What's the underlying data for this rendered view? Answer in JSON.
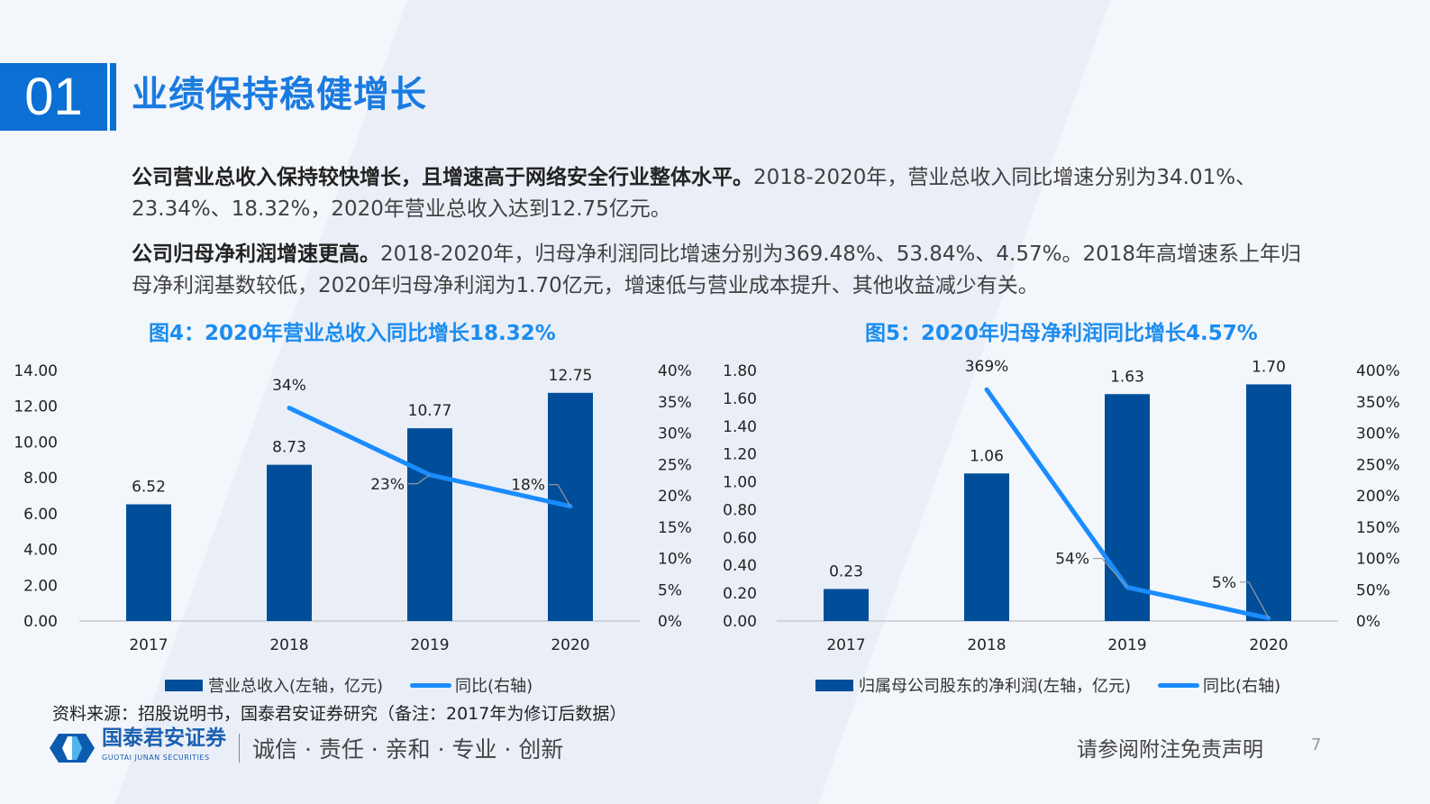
{
  "header": {
    "number": "01",
    "title": "业绩保持稳健增长"
  },
  "paragraphs": [
    {
      "bold": "公司营业总收入保持较快增长，且增速高于网络安全行业整体水平。",
      "text": "2018-2020年，营业总收入同比增速分别为34.01%、23.34%、18.32%，2020年营业总收入达到12.75亿元。"
    },
    {
      "bold": "公司归母净利润增速更高。",
      "text": "2018-2020年，归母净利润同比增速分别为369.48%、53.84%、4.57%。2018年高增速系上年归母净利润基数较低，2020年归母净利润为1.70亿元，增速低与营业成本提升、其他收益减少有关。"
    }
  ],
  "colors": {
    "bar": "#004e9a",
    "line": "#1a8cff",
    "title": "#1a7be0",
    "chart_title": "#1b8cf0"
  },
  "chart_data": [
    {
      "type": "bar+line",
      "title": "图4：2020年营业总收入同比增长18.32%",
      "categories": [
        "2017",
        "2018",
        "2019",
        "2020"
      ],
      "series": [
        {
          "name": "营业总收入(左轴，亿元)",
          "type": "bar",
          "axis": "left",
          "values": [
            6.52,
            8.73,
            10.77,
            12.75
          ],
          "labels": [
            "6.52",
            "8.73",
            "10.77",
            "12.75"
          ]
        },
        {
          "name": "同比(右轴)",
          "type": "line",
          "axis": "right",
          "values": [
            null,
            34.01,
            23.34,
            18.32
          ],
          "labels": [
            "",
            "34%",
            "23%",
            "18%"
          ]
        }
      ],
      "left_axis": {
        "range": [
          0,
          14
        ],
        "ticks": [
          "0.00",
          "2.00",
          "4.00",
          "6.00",
          "8.00",
          "10.00",
          "12.00",
          "14.00"
        ]
      },
      "right_axis": {
        "range": [
          0,
          40
        ],
        "ticks": [
          "0%",
          "5%",
          "10%",
          "15%",
          "20%",
          "25%",
          "30%",
          "35%",
          "40%"
        ]
      },
      "legend": "bottom",
      "grid": false
    },
    {
      "type": "bar+line",
      "title": "图5：2020年归母净利润同比增长4.57%",
      "categories": [
        "2017",
        "2018",
        "2019",
        "2020"
      ],
      "series": [
        {
          "name": "归属母公司股东的净利润(左轴，亿元)",
          "type": "bar",
          "axis": "left",
          "values": [
            0.23,
            1.06,
            1.63,
            1.7
          ],
          "labels": [
            "0.23",
            "1.06",
            "1.63",
            "1.70"
          ]
        },
        {
          "name": "同比(右轴)",
          "type": "line",
          "axis": "right",
          "values": [
            null,
            369.48,
            53.84,
            4.57
          ],
          "labels": [
            "",
            "369%",
            "54%",
            "5%"
          ]
        }
      ],
      "left_axis": {
        "range": [
          0,
          1.8
        ],
        "ticks": [
          "0.00",
          "0.20",
          "0.40",
          "0.60",
          "0.80",
          "1.00",
          "1.20",
          "1.40",
          "1.60",
          "1.80"
        ]
      },
      "right_axis": {
        "range": [
          0,
          400
        ],
        "ticks": [
          "0%",
          "50%",
          "100%",
          "150%",
          "200%",
          "250%",
          "300%",
          "350%",
          "400%"
        ]
      },
      "legend": "bottom",
      "grid": false
    }
  ],
  "footer": {
    "source": "资料来源：招股说明书，国泰君安证券研究（备注：2017年为修订后数据）",
    "logo_cn": "国泰君安证券",
    "logo_en": "GUOTAI JUNAN SECURITIES",
    "slogan": "诚信 · 责任 · 亲和 · 专业 · 创新",
    "disclaimer": "请参阅附注免责声明",
    "page": "7"
  }
}
